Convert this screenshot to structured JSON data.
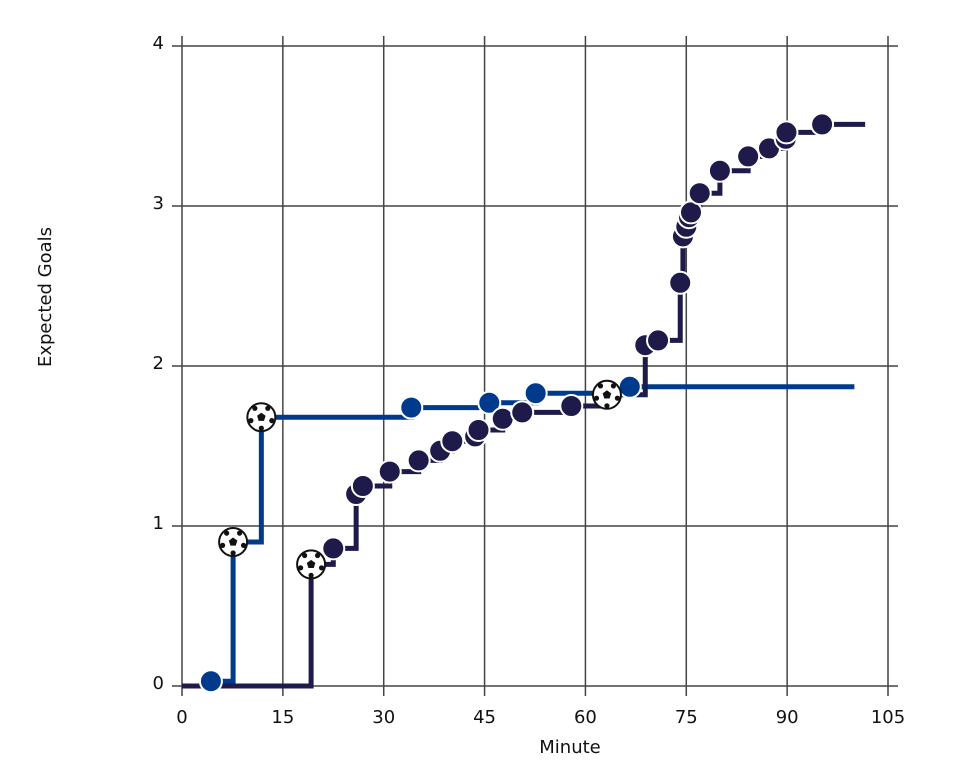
{
  "chart_data": {
    "type": "step-line",
    "x_label": "Minute",
    "y_label": "Expected Goals",
    "xlim": [
      0,
      105
    ],
    "xticks": [
      0,
      15,
      30,
      45,
      60,
      75,
      90,
      105
    ],
    "ylim": [
      0,
      4
    ],
    "yticks": [
      0,
      1,
      2,
      3,
      4
    ],
    "grid": true,
    "series": [
      {
        "color": "#003a8c",
        "x": [
          0,
          4.3,
          7.6,
          11.8,
          34.1,
          45.7,
          52.6,
          66.6,
          100
        ],
        "values": [
          0,
          0.03,
          0.9,
          1.68,
          1.74,
          1.77,
          1.83,
          1.87,
          1.87
        ],
        "markers": [
          "none",
          "shot",
          "goal",
          "goal",
          "shot",
          "shot",
          "shot",
          "shot",
          "none"
        ]
      },
      {
        "color": "#1e1a4a",
        "x": [
          0,
          19.2,
          22.5,
          25.9,
          26.9,
          30.9,
          35.2,
          38.4,
          40.2,
          43.6,
          44.1,
          47.7,
          50.6,
          57.9,
          63.2,
          68.9,
          70.8,
          74.1,
          74.5,
          75.0,
          75.4,
          75.7,
          77.0,
          80.0,
          84.2,
          87.3,
          89.8,
          89.9,
          95.2,
          101.6
        ],
        "values": [
          0,
          0.76,
          0.86,
          1.2,
          1.25,
          1.34,
          1.41,
          1.47,
          1.53,
          1.56,
          1.6,
          1.67,
          1.71,
          1.75,
          1.82,
          2.13,
          2.16,
          2.52,
          2.81,
          2.87,
          2.93,
          2.96,
          3.08,
          3.22,
          3.31,
          3.36,
          3.42,
          3.46,
          3.51,
          3.51
        ],
        "markers": [
          "none",
          "goal",
          "shot",
          "shot",
          "shot",
          "shot",
          "shot",
          "shot",
          "shot",
          "shot",
          "shot",
          "shot",
          "shot",
          "shot",
          "goal",
          "shot",
          "shot",
          "shot",
          "shot",
          "shot",
          "shot",
          "shot",
          "shot",
          "shot",
          "shot",
          "shot",
          "shot",
          "shot",
          "shot",
          "none"
        ]
      }
    ]
  }
}
